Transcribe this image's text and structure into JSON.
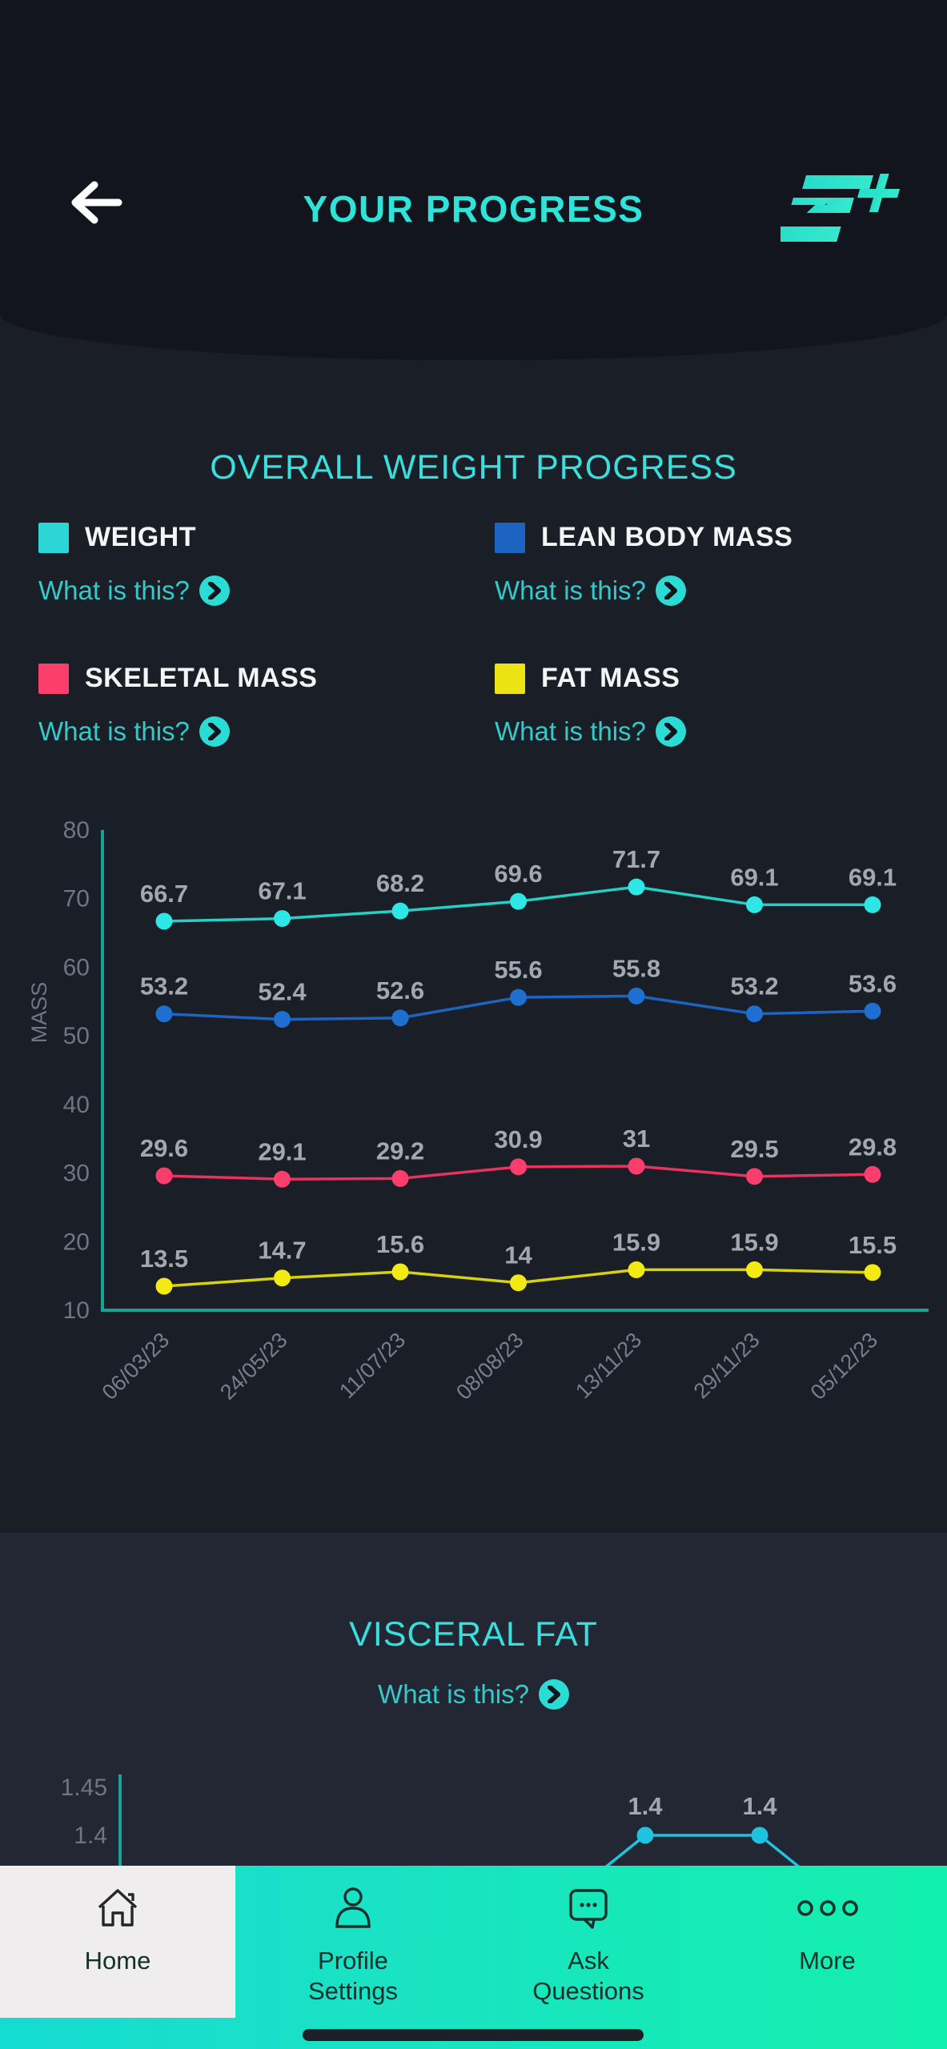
{
  "header": {
    "title": "YOUR PROGRESS"
  },
  "weight_section": {
    "title": "OVERALL WEIGHT PROGRESS",
    "legend": [
      {
        "label": "WEIGHT",
        "color": "#2bd6d6",
        "info_link": "What is this?"
      },
      {
        "label": "LEAN BODY MASS",
        "color": "#1c64c0",
        "info_link": "What is this?"
      },
      {
        "label": "SKELETAL MASS",
        "color": "#fb3e6c",
        "info_link": "What is this?"
      },
      {
        "label": "FAT MASS",
        "color": "#ece314",
        "info_link": "What is this?"
      }
    ]
  },
  "visceral_section": {
    "title": "VISCERAL FAT",
    "info_link": "What is this?"
  },
  "chart_data": [
    {
      "type": "line",
      "title": "OVERALL WEIGHT PROGRESS",
      "categories": [
        "06/03/23",
        "24/05/23",
        "11/07/23",
        "08/08/23",
        "13/11/23",
        "29/11/23",
        "05/12/23"
      ],
      "series": [
        {
          "name": "WEIGHT",
          "color": "#25cfc4",
          "dot_color": "#2ee6e6",
          "values": [
            66.7,
            67.1,
            68.2,
            69.6,
            71.7,
            69.1,
            69.1
          ]
        },
        {
          "name": "LEAN BODY MASS",
          "color": "#1c64c0",
          "dot_color": "#1f6fd0",
          "values": [
            53.2,
            52.4,
            52.6,
            55.6,
            55.8,
            53.2,
            53.6
          ]
        },
        {
          "name": "SKELETAL MASS",
          "color": "#e8335f",
          "dot_color": "#fb3e6c",
          "values": [
            29.6,
            29.1,
            29.2,
            30.9,
            31,
            29.5,
            29.8
          ]
        },
        {
          "name": "FAT MASS",
          "color": "#d8d20e",
          "dot_color": "#f3ea12",
          "values": [
            13.5,
            14.7,
            15.6,
            14,
            15.9,
            15.9,
            15.5
          ]
        }
      ],
      "xlabel": "",
      "ylabel": "MASS",
      "ylim": [
        10,
        80
      ],
      "yticks": [
        80,
        70,
        60,
        50,
        40,
        30,
        20,
        10
      ],
      "grid": false,
      "legend_position": "top"
    },
    {
      "type": "line",
      "title": "VISCERAL FAT",
      "note": "partially visible, clipped by bottom navigation",
      "yticks_visible": [
        1.45,
        1.4
      ],
      "visible_values": [
        1.4,
        1.4
      ],
      "line_color": "#1fc3df",
      "grid": false
    }
  ],
  "nav": {
    "items": [
      {
        "label_line1": "Home",
        "label_line2": "",
        "active": true
      },
      {
        "label_line1": "Profile",
        "label_line2": "Settings",
        "active": false
      },
      {
        "label_line1": "Ask",
        "label_line2": "Questions",
        "active": false
      },
      {
        "label_line1": "More",
        "label_line2": "",
        "active": false
      }
    ]
  },
  "colors": {
    "accent_teal": "#2ee4d9",
    "header_bg": "#12151d",
    "main_bg": "#1a1e27",
    "visceral_bg": "#232734",
    "axis": "#17a398",
    "tick_text": "#70757f",
    "point_label": "#a3a7af",
    "nav_gradient_left": "#15dcd2",
    "nav_gradient_right": "#13f0ad"
  }
}
